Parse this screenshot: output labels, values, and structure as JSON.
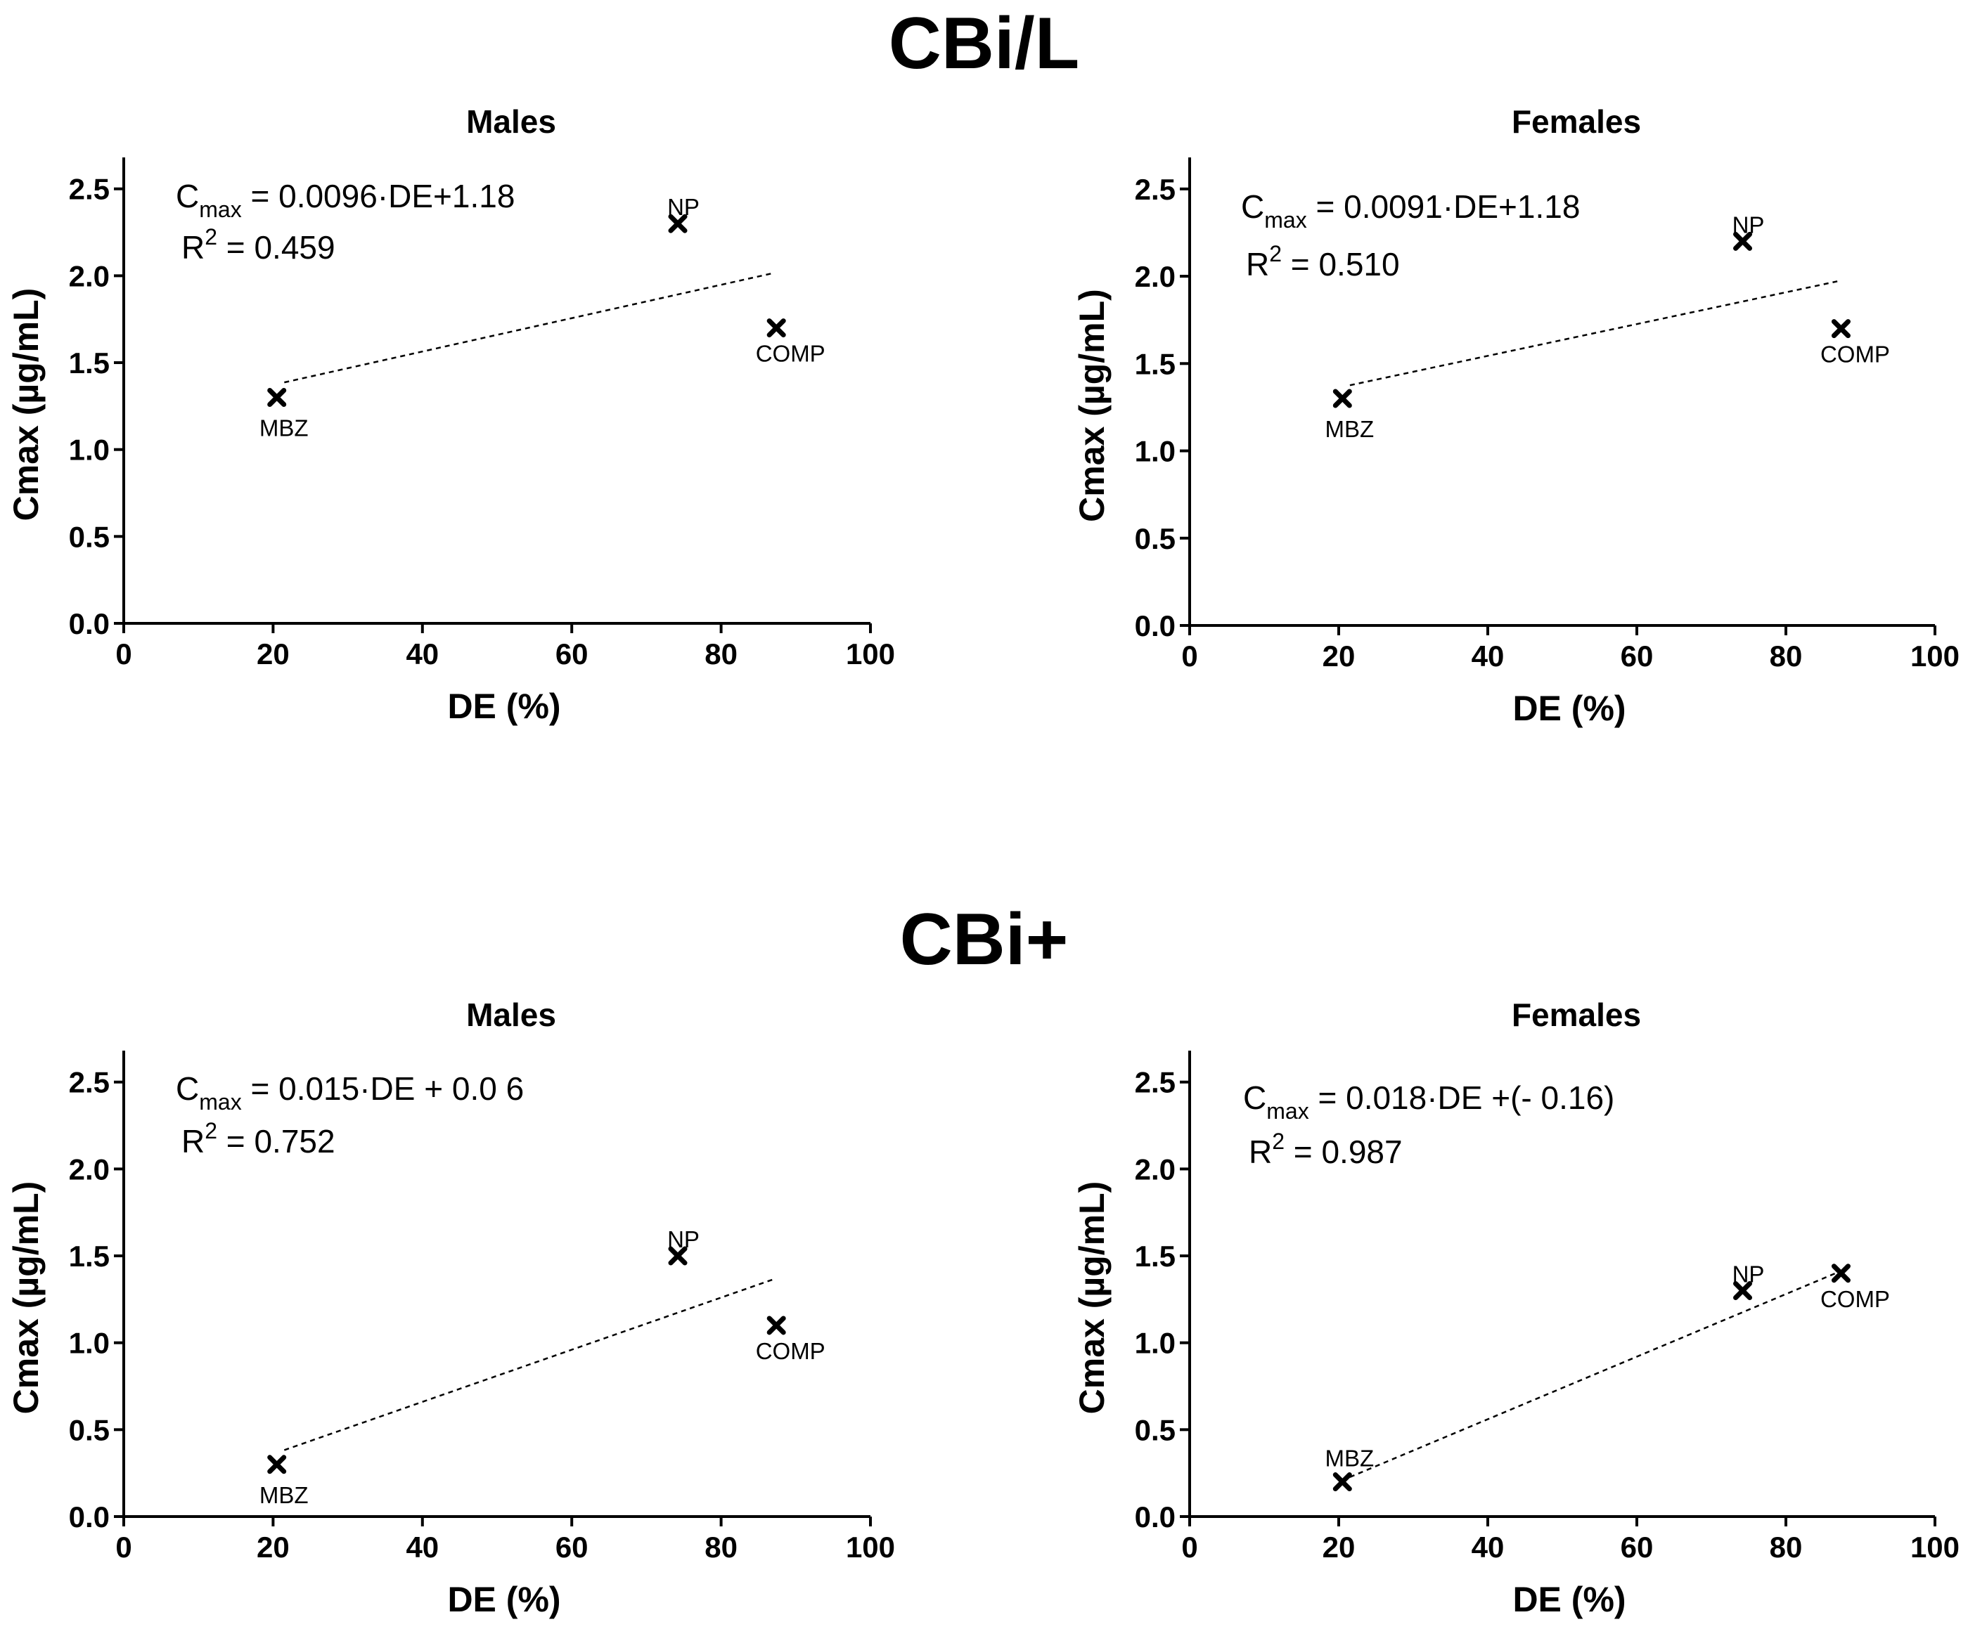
{
  "sections": [
    {
      "title": "CBi/L"
    },
    {
      "title": "CBi+"
    }
  ],
  "chart_data": [
    {
      "type": "scatter",
      "section": "CBi/L",
      "title": "Males",
      "xlabel": "DE (%)",
      "ylabel": "Cmax (µg/mL)",
      "xlim": [
        0,
        100
      ],
      "ylim": [
        0,
        2.6
      ],
      "xticks": [
        0,
        20,
        40,
        60,
        80,
        100
      ],
      "yticks": [
        0.0,
        0.5,
        1.0,
        1.5,
        2.0,
        2.5
      ],
      "points": [
        {
          "label": "MBZ",
          "x": 20.5,
          "y": 1.3
        },
        {
          "label": "NP",
          "x": 74.2,
          "y": 2.3
        },
        {
          "label": "COMP",
          "x": 87.4,
          "y": 1.7
        }
      ],
      "fit": {
        "slope": 0.0096,
        "intercept": 1.18,
        "x_from": 20.5,
        "x_to": 87.4,
        "eq_prefix": "C",
        "eq_sub": "max",
        "eq_rest": " = 0.0096·DE+1.18",
        "r2_prefix": "R",
        "r2_sup": "2",
        "r2_rest": " = 0.459"
      }
    },
    {
      "type": "scatter",
      "section": "CBi/L",
      "title": "Females",
      "xlabel": "DE (%)",
      "ylabel": "Cmax (µg/mL)",
      "xlim": [
        0,
        100
      ],
      "ylim": [
        0,
        2.6
      ],
      "xticks": [
        0,
        20,
        40,
        60,
        80,
        100
      ],
      "yticks": [
        0.0,
        0.5,
        1.0,
        1.5,
        2.0,
        2.5
      ],
      "points": [
        {
          "label": "MBZ",
          "x": 20.5,
          "y": 1.3
        },
        {
          "label": "NP",
          "x": 74.2,
          "y": 2.2
        },
        {
          "label": "COMP",
          "x": 87.4,
          "y": 1.7
        }
      ],
      "fit": {
        "slope": 0.0091,
        "intercept": 1.18,
        "x_from": 20.5,
        "x_to": 87.4,
        "eq_prefix": "C",
        "eq_sub": "max",
        "eq_rest": " = 0.0091·DE+1.18",
        "r2_prefix": "R",
        "r2_sup": "2",
        "r2_rest": " = 0.510"
      }
    },
    {
      "type": "scatter",
      "section": "CBi+",
      "title": "Males",
      "xlabel": "DE (%)",
      "ylabel": "Cmax (µg/mL)",
      "xlim": [
        0,
        100
      ],
      "ylim": [
        0,
        2.6
      ],
      "xticks": [
        0,
        20,
        40,
        60,
        80,
        100
      ],
      "yticks": [
        0.0,
        0.5,
        1.0,
        1.5,
        2.0,
        2.5
      ],
      "points": [
        {
          "label": "MBZ",
          "x": 20.5,
          "y": 0.3
        },
        {
          "label": "NP",
          "x": 74.2,
          "y": 1.5
        },
        {
          "label": "COMP",
          "x": 87.4,
          "y": 1.1
        }
      ],
      "fit": {
        "slope": 0.015,
        "intercept": 0.06,
        "x_from": 20.5,
        "x_to": 87.4,
        "eq_prefix": "C",
        "eq_sub": "max",
        "eq_rest": " = 0.015·DE + 0.0 6",
        "r2_prefix": "R",
        "r2_sup": "2",
        "r2_rest": " = 0.752"
      }
    },
    {
      "type": "scatter",
      "section": "CBi+",
      "title": "Females",
      "xlabel": "DE (%)",
      "ylabel": "Cmax (µg/mL)",
      "xlim": [
        0,
        100
      ],
      "ylim": [
        0,
        2.6
      ],
      "xticks": [
        0,
        20,
        40,
        60,
        80,
        100
      ],
      "yticks": [
        0.0,
        0.5,
        1.0,
        1.5,
        2.0,
        2.5
      ],
      "points": [
        {
          "label": "MBZ",
          "x": 20.5,
          "y": 0.2
        },
        {
          "label": "NP",
          "x": 74.2,
          "y": 1.3
        },
        {
          "label": "COMP",
          "x": 87.4,
          "y": 1.4
        }
      ],
      "fit": {
        "slope": 0.018,
        "intercept": -0.16,
        "x_from": 20.5,
        "x_to": 87.4,
        "eq_prefix": "C",
        "eq_sub": "max",
        "eq_rest": " = 0.018·DE +(- 0.16)",
        "r2_prefix": "R",
        "r2_sup": "2",
        "r2_rest": " = 0.987"
      }
    }
  ]
}
